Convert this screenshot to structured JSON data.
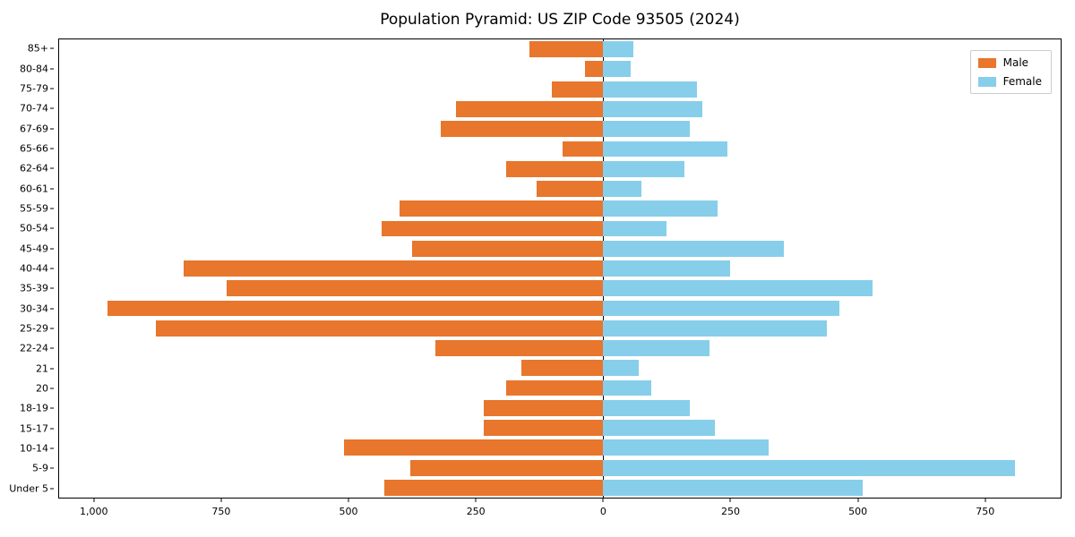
{
  "title": "Population Pyramid: US ZIP Code 93505 (2024)",
  "legend": {
    "male_label": "Male",
    "female_label": "Female"
  },
  "chart_data": {
    "type": "bar",
    "orientation": "horizontal",
    "title": "Population Pyramid: US ZIP Code 93505 (2024)",
    "categories": [
      "85+",
      "80-84",
      "75-79",
      "70-74",
      "67-69",
      "65-66",
      "62-64",
      "60-61",
      "55-59",
      "50-54",
      "45-49",
      "40-44",
      "35-39",
      "30-34",
      "25-29",
      "22-24",
      "21",
      "20",
      "18-19",
      "15-17",
      "10-14",
      "5-9",
      "Under 5"
    ],
    "series": [
      {
        "name": "Male",
        "side": "left",
        "color": "#e8762d",
        "values": [
          145,
          35,
          100,
          290,
          320,
          80,
          190,
          130,
          400,
          435,
          375,
          825,
          740,
          975,
          880,
          330,
          160,
          190,
          235,
          235,
          510,
          380,
          430
        ]
      },
      {
        "name": "Female",
        "side": "right",
        "color": "#87ceeb",
        "values": [
          60,
          55,
          185,
          195,
          170,
          245,
          160,
          75,
          225,
          125,
          355,
          250,
          530,
          465,
          440,
          210,
          70,
          95,
          170,
          220,
          325,
          810,
          510
        ]
      }
    ],
    "xlim": [
      -1070,
      900
    ],
    "x_ticks": [
      {
        "value": -1000,
        "label": "1,000"
      },
      {
        "value": -750,
        "label": "750"
      },
      {
        "value": -500,
        "label": "500"
      },
      {
        "value": -250,
        "label": "250"
      },
      {
        "value": 0,
        "label": "0"
      },
      {
        "value": 250,
        "label": "250"
      },
      {
        "value": 500,
        "label": "500"
      },
      {
        "value": 750,
        "label": "750"
      }
    ],
    "grid": false,
    "legend_position": "upper right",
    "bar_height_fraction": 0.8
  }
}
